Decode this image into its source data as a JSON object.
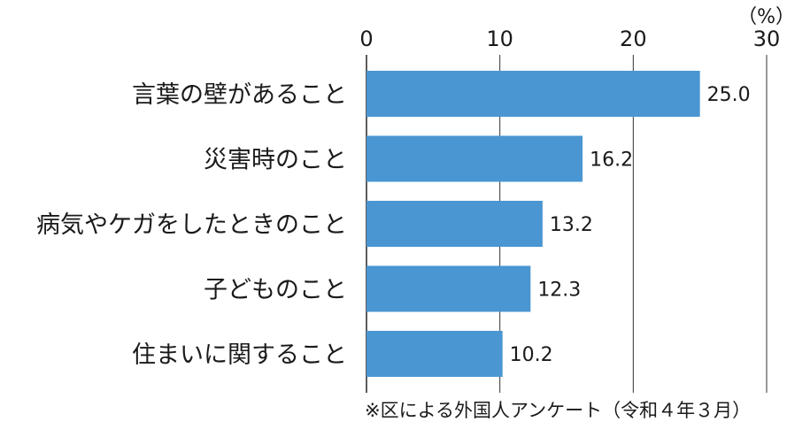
{
  "chart_data": {
    "type": "bar",
    "orientation": "horizontal",
    "categories": [
      "言葉の壁があること",
      "災害時のこと",
      "病気やケガをしたときのこと",
      "子どものこと",
      "住まいに関すること"
    ],
    "values": [
      25.0,
      16.2,
      13.2,
      12.3,
      10.2
    ],
    "value_labels": [
      "25.0",
      "16.2",
      "13.2",
      "12.3",
      "10.2"
    ],
    "xticks": [
      "0",
      "10",
      "20",
      "30"
    ],
    "xlim": [
      0,
      30
    ],
    "unit": "（%）",
    "note": "※区による外国人アンケート（令和４年３月）",
    "grid": true,
    "legend": "none",
    "bar_color": "#4a96d2"
  }
}
